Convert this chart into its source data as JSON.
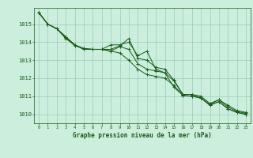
{
  "background_color": "#cceedd",
  "grid_color": "#99ccbb",
  "line_color": "#1a5c1a",
  "xlabel": "Graphe pression niveau de la mer (hPa)",
  "xlabel_color": "#1a5c1a",
  "ylabel_ticks": [
    1010,
    1011,
    1012,
    1013,
    1014,
    1015
  ],
  "xlim": [
    -0.5,
    23.5
  ],
  "ylim": [
    1009.5,
    1015.9
  ],
  "series": [
    [
      1015.65,
      1015.0,
      1014.75,
      1014.2,
      1013.85,
      1013.65,
      1013.6,
      1013.6,
      1013.6,
      1013.8,
      1014.2,
      1013.1,
      1013.0,
      1012.6,
      1012.5,
      1011.9,
      1011.1,
      1011.1,
      1011.0,
      1010.6,
      1010.8,
      1010.5,
      1010.2,
      1010.1
    ],
    [
      1015.65,
      1015.0,
      1014.75,
      1014.3,
      1013.85,
      1013.6,
      1013.6,
      1013.6,
      1013.5,
      1013.75,
      1013.6,
      1012.8,
      1012.5,
      1012.4,
      1012.3,
      1011.85,
      1011.1,
      1011.1,
      1010.9,
      1010.55,
      1010.8,
      1010.4,
      1010.15,
      1010.05
    ],
    [
      1015.65,
      1015.0,
      1014.75,
      1014.3,
      1013.85,
      1013.6,
      1013.6,
      1013.6,
      1013.85,
      1013.85,
      1014.0,
      1013.25,
      1013.5,
      1012.5,
      1012.3,
      1011.5,
      1011.05,
      1011.0,
      1010.9,
      1010.5,
      1010.7,
      1010.3,
      1010.1,
      1010.0
    ],
    [
      1015.65,
      1015.0,
      1014.75,
      1014.25,
      1013.8,
      1013.65,
      1013.6,
      1013.6,
      1013.5,
      1013.4,
      1013.0,
      1012.5,
      1012.2,
      1012.1,
      1012.0,
      1011.6,
      1011.05,
      1011.0,
      1010.9,
      1010.5,
      1010.7,
      1010.3,
      1010.1,
      1010.0
    ]
  ],
  "figsize": [
    3.2,
    2.0
  ],
  "dpi": 100
}
